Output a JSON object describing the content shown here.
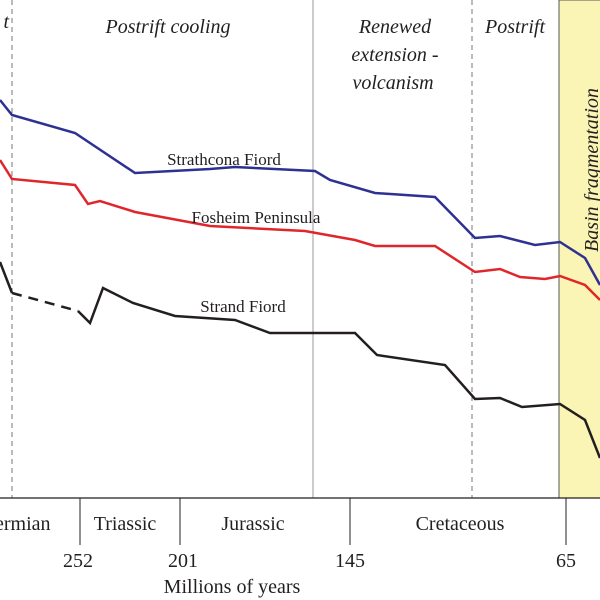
{
  "zones": [
    "t",
    "Postrift cooling",
    "Renewed",
    "extension -",
    "volcanism",
    "Postrift",
    "Basin fragmentation"
  ],
  "curves": [
    "Strathcona Fiord",
    "Fosheim Peninsula",
    "Strand Fiord"
  ],
  "periods": [
    "ermian",
    "Triassic",
    "Jurassic",
    "Cretaceous"
  ],
  "ticks": [
    "252",
    "201",
    "145",
    "65"
  ],
  "axis_label": "Millions of years"
}
